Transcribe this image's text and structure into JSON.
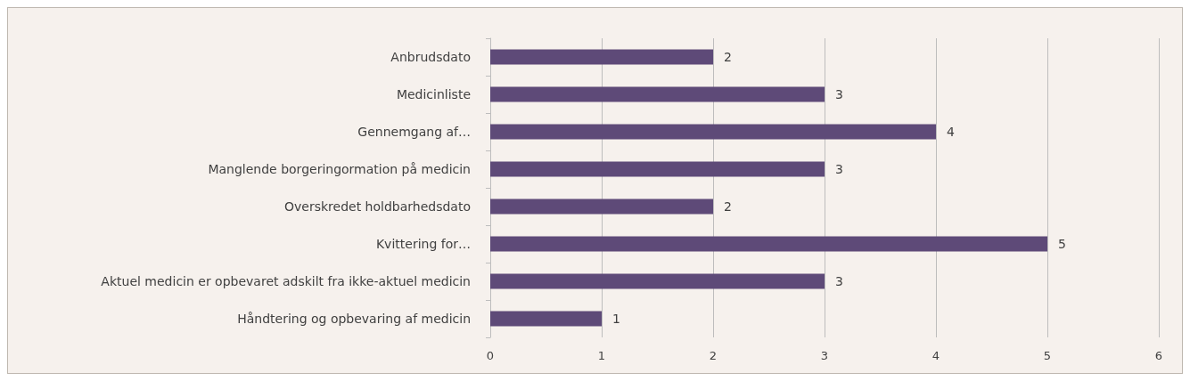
{
  "chart_data": {
    "type": "bar",
    "orientation": "horizontal",
    "categories": [
      "Anbrudsdato",
      "Medicinliste",
      "Gennemgang af…",
      "Manglende borgeringormation på medicin",
      "Overskredet holdbarhedsdato",
      "Kvittering for…",
      "Aktuel medicin er opbevaret adskilt fra ikke-aktuel medicin",
      "Håndtering og opbevaring af medicin"
    ],
    "values": [
      2,
      3,
      4,
      3,
      2,
      5,
      3,
      1
    ],
    "color": "#5e4a78",
    "xlim": [
      0,
      6
    ],
    "xticks": [
      0,
      1,
      2,
      3,
      4,
      5,
      6
    ],
    "grid": "x",
    "data_labels": true
  }
}
